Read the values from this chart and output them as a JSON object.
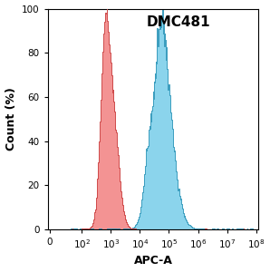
{
  "title": "DMC481",
  "xlabel": "APC-A",
  "ylabel": "Count (%)",
  "ylim": [
    0,
    100
  ],
  "yticks": [
    0,
    20,
    40,
    60,
    80,
    100
  ],
  "red_fill_color": "#F28080",
  "red_edge_color": "#CC4444",
  "blue_fill_color": "#6ECAE8",
  "blue_edge_color": "#3399BB",
  "red_alpha": 0.85,
  "blue_alpha": 0.8,
  "background_color": "#ffffff",
  "title_fontsize": 11,
  "label_fontsize": 9,
  "tick_fontsize": 7.5
}
